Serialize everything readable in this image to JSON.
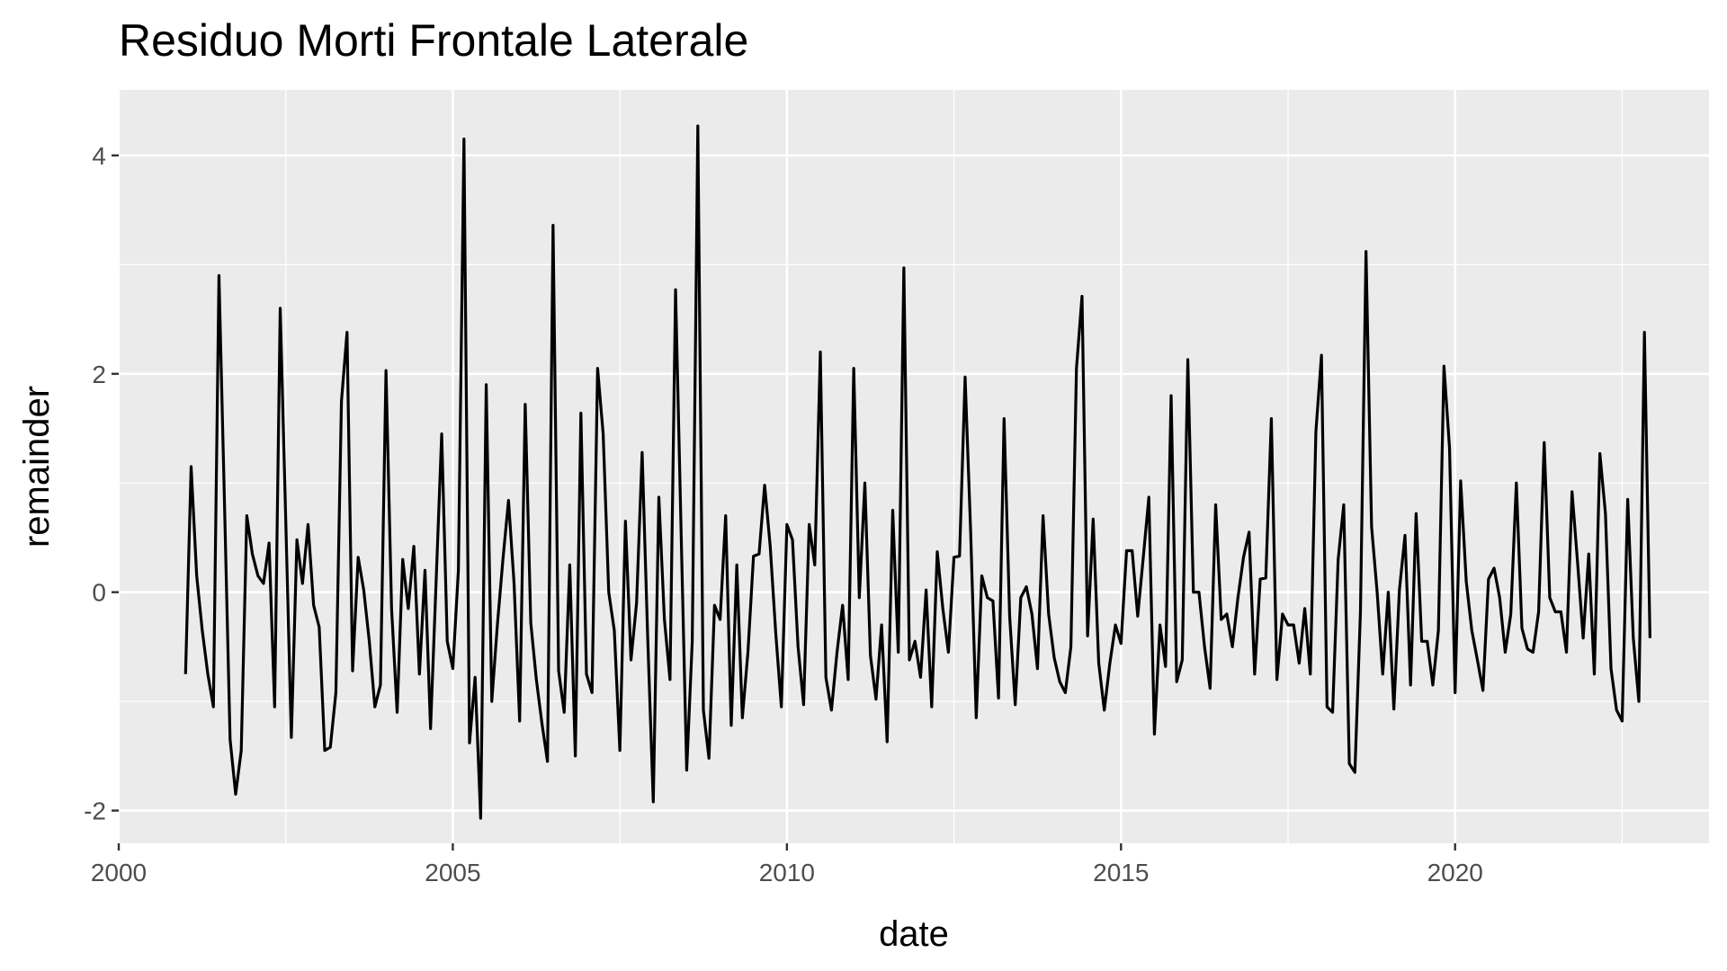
{
  "chart_data": {
    "type": "line",
    "title": "Residuo Morti Frontale Laterale",
    "xlabel": "date",
    "ylabel": "remainder",
    "xlim": [
      2000.0,
      2023.8
    ],
    "ylim": [
      -2.3,
      4.6
    ],
    "x_ticks": [
      2000,
      2005,
      2010,
      2015,
      2020
    ],
    "x_tick_labels": [
      "2000",
      "2005",
      "2010",
      "2015",
      "2020"
    ],
    "y_ticks": [
      -2,
      0,
      2,
      4
    ],
    "y_tick_labels": [
      "-2",
      "0",
      "2",
      "4"
    ],
    "grid": true,
    "frequency": "monthly",
    "start": "2001-01",
    "series": [
      {
        "color": "#000000",
        "values": [
          -0.75,
          1.15,
          0.15,
          -0.35,
          -0.75,
          -1.05,
          2.9,
          0.8,
          -1.35,
          -1.85,
          -1.45,
          0.7,
          0.35,
          0.15,
          0.08,
          0.45,
          -1.05,
          2.6,
          0.65,
          -1.33,
          0.48,
          0.08,
          0.62,
          -0.12,
          -0.32,
          -1.45,
          -1.42,
          -0.92,
          1.75,
          2.38,
          -0.72,
          0.32,
          0.02,
          -0.45,
          -1.05,
          -0.85,
          2.03,
          -0.15,
          -1.1,
          0.3,
          -0.15,
          0.42,
          -0.75,
          0.2,
          -1.25,
          0.1,
          1.45,
          -0.45,
          -0.7,
          0.2,
          4.15,
          -1.38,
          -0.78,
          -2.07,
          1.9,
          -1.0,
          -0.3,
          0.3,
          0.84,
          0.08,
          -1.18,
          1.72,
          -0.28,
          -0.8,
          -1.2,
          -1.55,
          3.36,
          -0.72,
          -1.1,
          0.25,
          -1.5,
          1.64,
          -0.75,
          -0.92,
          2.05,
          1.45,
          0.0,
          -0.35,
          -1.45,
          0.65,
          -0.62,
          -0.1,
          1.28,
          -0.42,
          -1.92,
          0.87,
          -0.25,
          -0.8,
          2.77,
          0.55,
          -1.63,
          -0.45,
          4.27,
          -1.08,
          -1.52,
          -0.12,
          -0.25,
          0.7,
          -1.22,
          0.25,
          -1.15,
          -0.55,
          0.33,
          0.35,
          0.98,
          0.42,
          -0.38,
          -1.05,
          0.62,
          0.48,
          -0.5,
          -1.03,
          0.62,
          0.25,
          2.2,
          -0.78,
          -1.08,
          -0.55,
          -0.12,
          -0.8,
          2.05,
          -0.05,
          1.0,
          -0.58,
          -0.98,
          -0.3,
          -1.37,
          0.75,
          -0.55,
          2.97,
          -0.62,
          -0.45,
          -0.78,
          0.02,
          -1.05,
          0.37,
          -0.15,
          -0.55,
          0.32,
          0.33,
          1.97,
          0.55,
          -1.15,
          0.15,
          -0.05,
          -0.08,
          -0.97,
          1.59,
          -0.22,
          -1.03,
          -0.05,
          0.05,
          -0.2,
          -0.7,
          0.7,
          -0.2,
          -0.6,
          -0.82,
          -0.92,
          -0.5,
          2.05,
          2.71,
          -0.4,
          0.67,
          -0.65,
          -1.08,
          -0.65,
          -0.3,
          -0.47,
          0.38,
          0.38,
          -0.22,
          0.32,
          0.87,
          -1.3,
          -0.3,
          -0.68,
          1.8,
          -0.82,
          -0.62,
          2.13,
          0.0,
          0.0,
          -0.5,
          -0.88,
          0.8,
          -0.25,
          -0.2,
          -0.5,
          -0.05,
          0.32,
          0.55,
          -0.75,
          0.12,
          0.13,
          1.59,
          -0.8,
          -0.2,
          -0.3,
          -0.3,
          -0.65,
          -0.15,
          -0.75,
          1.47,
          2.17,
          -1.05,
          -1.1,
          0.3,
          0.8,
          -1.57,
          -1.65,
          -0.18,
          3.12,
          0.6,
          0.0,
          -0.75,
          0.0,
          -1.07,
          0.02,
          0.52,
          -0.85,
          0.72,
          -0.45,
          -0.45,
          -0.85,
          -0.35,
          2.07,
          1.32,
          -0.92,
          1.02,
          0.1,
          -0.35,
          -0.62,
          -0.9,
          0.12,
          0.22,
          -0.05,
          -0.55,
          -0.2,
          1.0,
          -0.33,
          -0.52,
          -0.55,
          -0.18,
          1.37,
          -0.05,
          -0.18,
          -0.18,
          -0.55,
          0.92,
          0.27,
          -0.42,
          0.35,
          -0.75,
          1.27,
          0.72,
          -0.7,
          -1.08,
          -1.18,
          0.85,
          -0.42,
          -1.0,
          2.38,
          -0.42
        ]
      }
    ]
  }
}
